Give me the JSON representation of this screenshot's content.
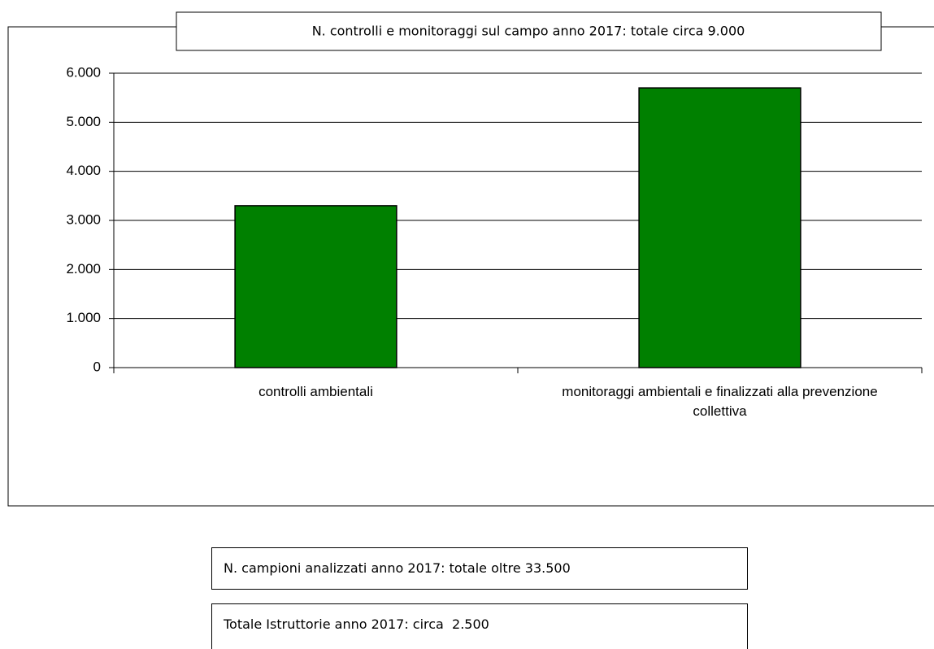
{
  "chart_data": {
    "type": "bar",
    "title": "N. controlli e monitoraggi sul campo anno 2017: totale circa 9.000",
    "categories": [
      "controlli ambientali",
      "monitoraggi ambientali e finalizzati alla prevenzione collettiva"
    ],
    "values": [
      3300,
      5700
    ],
    "color": "#008000",
    "ylim": [
      0,
      6000
    ],
    "yticks": [
      0,
      {
        "value": 1000,
        "label": "1.000"
      },
      {
        "value": 2000,
        "label": "2.000"
      },
      {
        "value": 3000,
        "label": "3.000"
      },
      {
        "value": 4000,
        "label": "4.000"
      },
      {
        "value": 5000,
        "label": "5.000"
      },
      {
        "value": 6000,
        "label": "6.000"
      }
    ],
    "grid": true
  },
  "notes": [
    "N. campioni analizzati anno 2017: totale oltre 33.500",
    "Totale Istruttorie anno 2017: circa  2.500"
  ]
}
